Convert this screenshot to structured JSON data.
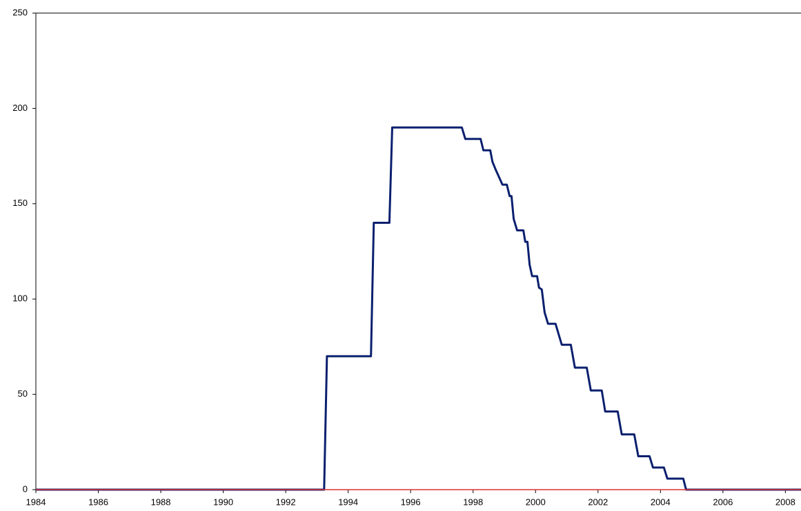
{
  "chart_data": {
    "type": "line",
    "xlim": [
      1984,
      2008.5
    ],
    "xticks": [
      1984,
      1986,
      1988,
      1990,
      1992,
      1994,
      1996,
      1998,
      2000,
      2002,
      2004,
      2006,
      2008
    ],
    "ylim": [
      0,
      250
    ],
    "yticks": [
      0,
      50,
      100,
      150,
      200,
      250
    ],
    "series": [
      {
        "color": "#0a1f6e",
        "x": [
          1984,
          1993.23,
          1993.32,
          1994.73,
          1994.82,
          1995.32,
          1995.41,
          1997.64,
          1997.75,
          1998.24,
          1998.33,
          1998.55,
          1998.62,
          1998.72,
          1998.94,
          1999.08,
          1999.17,
          1999.23,
          1999.3,
          1999.41,
          1999.61,
          1999.67,
          1999.74,
          1999.81,
          1999.89,
          2000.05,
          2000.11,
          2000.2,
          2000.29,
          2000.4,
          2000.64,
          2000.84,
          2001.13,
          2001.26,
          2001.64,
          2001.77,
          2002.12,
          2002.23,
          2002.63,
          2002.76,
          2003.16,
          2003.29,
          2003.65,
          2003.76,
          2004.11,
          2004.22,
          2004.73,
          2004.82,
          2008.5
        ],
        "values": [
          0,
          0,
          70,
          70,
          140,
          140,
          190,
          190,
          184,
          184,
          178,
          178,
          172,
          168,
          160,
          160,
          154,
          154,
          142,
          136,
          136,
          130,
          130,
          118,
          112,
          112,
          106,
          105,
          93,
          87,
          87,
          76,
          76,
          64,
          64,
          52,
          52,
          41,
          41,
          29,
          29,
          17.5,
          17.5,
          11.6,
          11.6,
          5.8,
          5.8,
          0,
          0
        ]
      },
      {
        "color": "#e03030",
        "x": [
          1984,
          2008.5
        ],
        "values": [
          0,
          0
        ]
      }
    ]
  }
}
